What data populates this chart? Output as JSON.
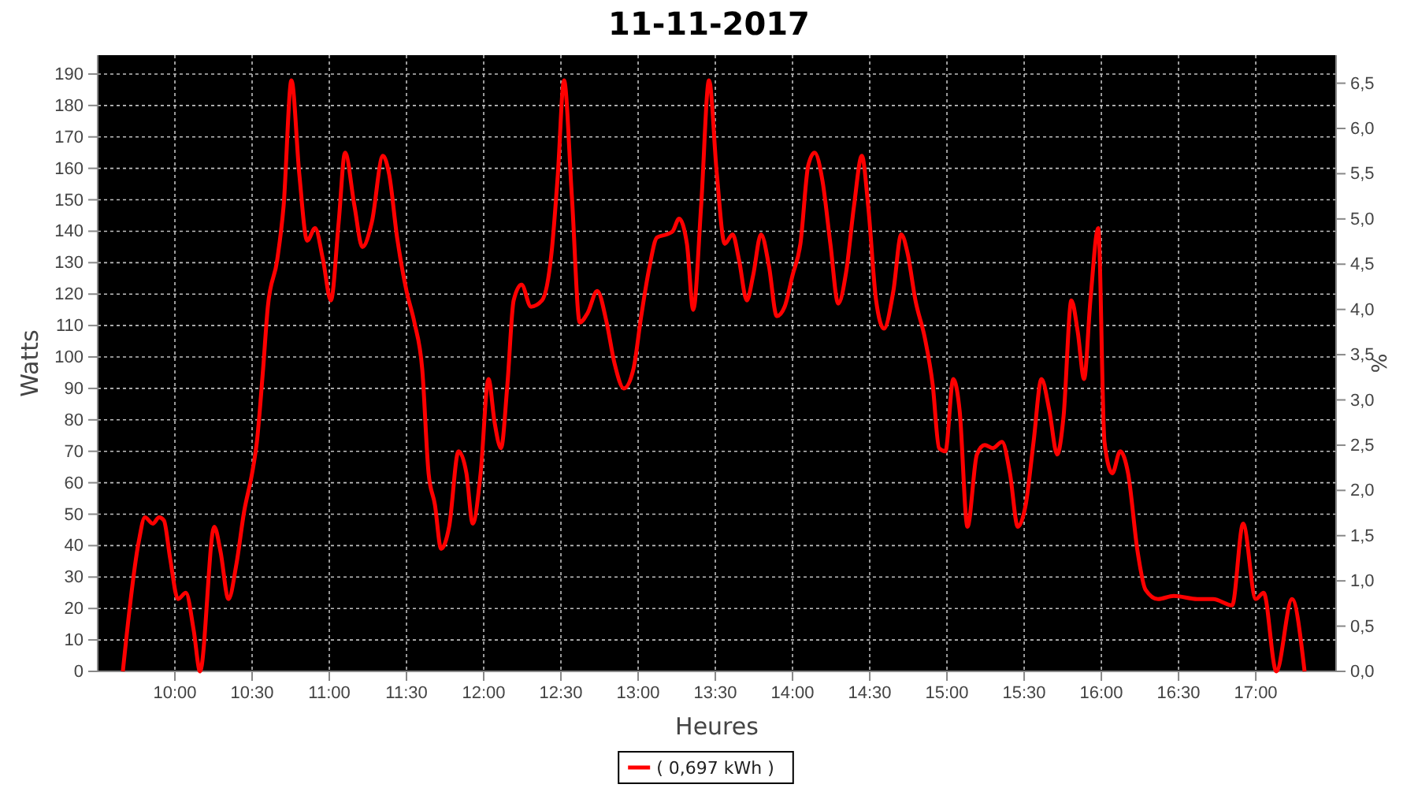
{
  "chart_data": {
    "type": "line",
    "title": "11-11-2017",
    "xlabel": "Heures",
    "ylabel": "Watts",
    "y2label": "%",
    "x": [
      9.663,
      9.765,
      9.806,
      9.857,
      9.898,
      9.929,
      9.969,
      10.02,
      10.071,
      10.122,
      10.163,
      10.255,
      10.296,
      10.347,
      10.398,
      10.449,
      10.5,
      10.531,
      10.571,
      10.602,
      10.663,
      10.704,
      10.755,
      10.806,
      10.857,
      10.908,
      10.959,
      11.01,
      11.061,
      11.102,
      11.163,
      11.214,
      11.276,
      11.347,
      11.388,
      11.439,
      11.5,
      11.551,
      11.602,
      11.643,
      11.684,
      11.724,
      11.776,
      11.837,
      11.888,
      11.929,
      11.98,
      12.031,
      12.071,
      12.112,
      12.153,
      12.194,
      12.245,
      12.306,
      12.378,
      12.439,
      12.48,
      12.52,
      12.571,
      12.622,
      12.673,
      12.735,
      12.796,
      12.847,
      12.908,
      12.969,
      13.02,
      13.071,
      13.122,
      13.184,
      13.224,
      13.265,
      13.316,
      13.357,
      13.408,
      13.459,
      13.51,
      13.561,
      13.612,
      13.653,
      13.704,
      13.745,
      13.796,
      13.847,
      13.898,
      13.949,
      14.0,
      14.051,
      14.102,
      14.143,
      14.194,
      14.245,
      14.296,
      14.347,
      14.398,
      14.449,
      14.49,
      14.541,
      14.592,
      14.653,
      14.704,
      14.745,
      14.796,
      14.857,
      14.908,
      14.949,
      14.99,
      15.041,
      15.082,
      15.133,
      15.194,
      15.245,
      15.296,
      15.357,
      15.408,
      15.459,
      15.51,
      15.561,
      15.612,
      15.663,
      15.714,
      15.755,
      15.806,
      15.847,
      15.888,
      15.929,
      15.98,
      16.02,
      16.071,
      16.122,
      16.173,
      16.235,
      16.286,
      16.367,
      16.469,
      16.622,
      16.724,
      16.847,
      16.918,
      17.0,
      17.051,
      17.133,
      17.235,
      17.316
    ],
    "series": [
      {
        "name": "( 0,697 kWh )",
        "color": "#ff0000",
        "values": [
          0,
          41,
          49,
          47,
          49,
          48,
          36,
          23,
          25,
          13,
          0,
          46,
          38,
          23,
          34,
          51,
          63,
          73,
          96,
          116,
          131,
          148,
          188,
          158,
          137,
          141,
          131,
          118,
          143,
          165,
          148,
          135,
          143,
          164,
          158,
          138,
          121,
          111,
          96,
          63,
          53,
          39,
          46,
          70,
          63,
          47,
          63,
          93,
          79,
          71,
          91,
          118,
          123,
          116,
          118,
          133,
          158,
          188,
          151,
          111,
          114,
          121,
          111,
          98,
          90,
          96,
          113,
          128,
          138,
          139,
          140,
          144,
          136,
          115,
          148,
          188,
          158,
          136,
          139,
          131,
          118,
          126,
          139,
          129,
          113,
          116,
          126,
          136,
          161,
          165,
          156,
          136,
          117,
          127,
          148,
          164,
          148,
          118,
          109,
          121,
          139,
          133,
          118,
          106,
          91,
          71,
          70,
          93,
          83,
          46,
          69,
          72,
          71,
          73,
          63,
          46,
          53,
          73,
          93,
          83,
          69,
          81,
          118,
          108,
          93,
          118,
          141,
          73,
          63,
          70,
          63,
          38,
          26,
          23,
          24,
          23,
          23,
          21,
          47,
          23,
          25,
          0,
          23,
          0
        ]
      }
    ],
    "xlim": [
      9.5,
      17.52
    ],
    "xticks": [
      {
        "value": 10,
        "label": "10:00"
      },
      {
        "value": 10.5,
        "label": "10:30"
      },
      {
        "value": 11,
        "label": "11:00"
      },
      {
        "value": 11.5,
        "label": "11:30"
      },
      {
        "value": 12,
        "label": "12:00"
      },
      {
        "value": 12.5,
        "label": "12:30"
      },
      {
        "value": 13,
        "label": "13:00"
      },
      {
        "value": 13.5,
        "label": "13:30"
      },
      {
        "value": 14,
        "label": "14:00"
      },
      {
        "value": 14.5,
        "label": "14:30"
      },
      {
        "value": 15,
        "label": "15:00"
      },
      {
        "value": 15.5,
        "label": "15:30"
      },
      {
        "value": 16,
        "label": "16:00"
      },
      {
        "value": 16.5,
        "label": "16:30"
      },
      {
        "value": 17,
        "label": "17:00"
      }
    ],
    "ylim": [
      0,
      196
    ],
    "yticks": [
      0,
      10,
      20,
      30,
      40,
      50,
      60,
      70,
      80,
      90,
      100,
      110,
      120,
      130,
      140,
      150,
      160,
      170,
      180,
      190
    ],
    "y2lim": [
      0,
      6.81
    ],
    "y2ticks": [
      {
        "value": 0,
        "label": "0,0"
      },
      {
        "value": 0.5,
        "label": "0,5"
      },
      {
        "value": 1,
        "label": "1,0"
      },
      {
        "value": 1.5,
        "label": "1,5"
      },
      {
        "value": 2,
        "label": "2,0"
      },
      {
        "value": 2.5,
        "label": "2,5"
      },
      {
        "value": 3,
        "label": "3,0"
      },
      {
        "value": 3.5,
        "label": "3,5"
      },
      {
        "value": 4,
        "label": "4,0"
      },
      {
        "value": 4.5,
        "label": "4,5"
      },
      {
        "value": 5,
        "label": "5,0"
      },
      {
        "value": 5.5,
        "label": "5,5"
      },
      {
        "value": 6,
        "label": "6,0"
      },
      {
        "value": 6.5,
        "label": "6,5"
      }
    ],
    "grid": true,
    "legend": "bottom",
    "marker": "none",
    "line_style": "solid"
  }
}
